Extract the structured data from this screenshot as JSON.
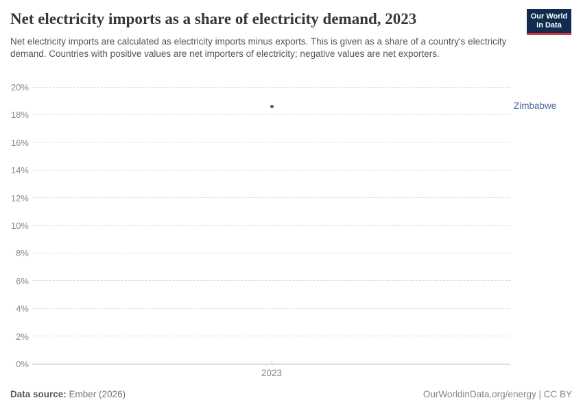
{
  "header": {
    "title": "Net electricity imports as a share of electricity demand, 2023",
    "subtitle": "Net electricity imports are calculated as electricity imports minus exports. This is given as a share of a country's electricity demand. Countries with positive values are net importers of electricity; negative values are net exporters.",
    "logo": {
      "line1": "Our World",
      "line2": "in Data",
      "bg_color": "#102d50",
      "bar_color": "#d1353f"
    }
  },
  "chart_data": {
    "type": "scatter",
    "title": "Net electricity imports as a share of electricity demand, 2023",
    "series": [
      {
        "name": "Zimbabwe",
        "x": [
          2023
        ],
        "values": [
          18.6
        ],
        "color": "#3e5d94"
      }
    ],
    "x_tick_labels": [
      "2023"
    ],
    "yticks": [
      0,
      2,
      4,
      6,
      8,
      10,
      12,
      14,
      16,
      18,
      20
    ],
    "ylim": [
      0,
      20
    ],
    "ytick_suffix": "%",
    "grid": "horizontal-dashed",
    "legend_position": "right-entity-label",
    "entity_label": "Zimbabwe",
    "entity_label_color": "#4d6a9e"
  },
  "footer": {
    "source_label": "Data source:",
    "source_value": "Ember (2026)",
    "credit": "OurWorldinData.org/energy | CC BY"
  }
}
